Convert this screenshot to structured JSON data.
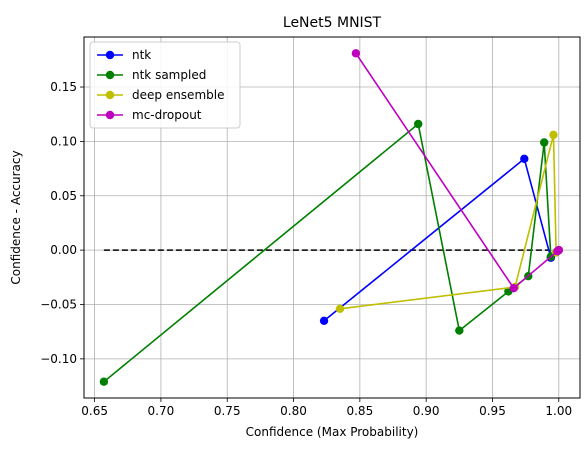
{
  "chart_data": {
    "type": "line",
    "title": "LeNet5 MNIST",
    "xlabel": "Confidence (Max Probability)",
    "ylabel": "Confidence - Accuracy",
    "xlim": [
      0.642,
      1.016
    ],
    "ylim": [
      -0.136,
      0.196
    ],
    "xticks": [
      0.65,
      0.7,
      0.75,
      0.8,
      0.85,
      0.9,
      0.95,
      1.0
    ],
    "xtick_labels": [
      "0.65",
      "0.70",
      "0.75",
      "0.80",
      "0.85",
      "0.90",
      "0.95",
      "1.00"
    ],
    "yticks": [
      -0.1,
      -0.05,
      0.0,
      0.05,
      0.1,
      0.15
    ],
    "ytick_labels": [
      "−0.10",
      "−0.05",
      "0.00",
      "0.05",
      "0.10",
      "0.15"
    ],
    "grid": true,
    "legend_position": "top-left",
    "reference_line": {
      "x": [
        0.657,
        1.0
      ],
      "y": [
        0.0,
        0.0
      ],
      "style": "dashed",
      "color": "#000000"
    },
    "series": [
      {
        "name": "ntk",
        "color": "#0000ff",
        "x": [
          0.823,
          0.974,
          0.994,
          0.998,
          1.0
        ],
        "y": [
          -0.065,
          0.084,
          -0.007,
          -0.002,
          0.0
        ]
      },
      {
        "name": "ntk sampled",
        "color": "#008000",
        "x": [
          0.657,
          0.894,
          0.925,
          0.962,
          0.977,
          0.989,
          0.994,
          1.0
        ],
        "y": [
          -0.121,
          0.116,
          -0.074,
          -0.038,
          -0.024,
          0.099,
          -0.006,
          0.0
        ]
      },
      {
        "name": "deep ensemble",
        "color": "#bfbf00",
        "x": [
          0.835,
          0.967,
          0.996,
          0.998,
          1.0
        ],
        "y": [
          -0.054,
          -0.034,
          0.106,
          -0.002,
          0.0
        ]
      },
      {
        "name": "mc-dropout",
        "color": "#bf00bf",
        "x": [
          0.847,
          0.966,
          0.999,
          1.0
        ],
        "y": [
          0.181,
          -0.035,
          -0.001,
          0.0
        ]
      }
    ]
  }
}
